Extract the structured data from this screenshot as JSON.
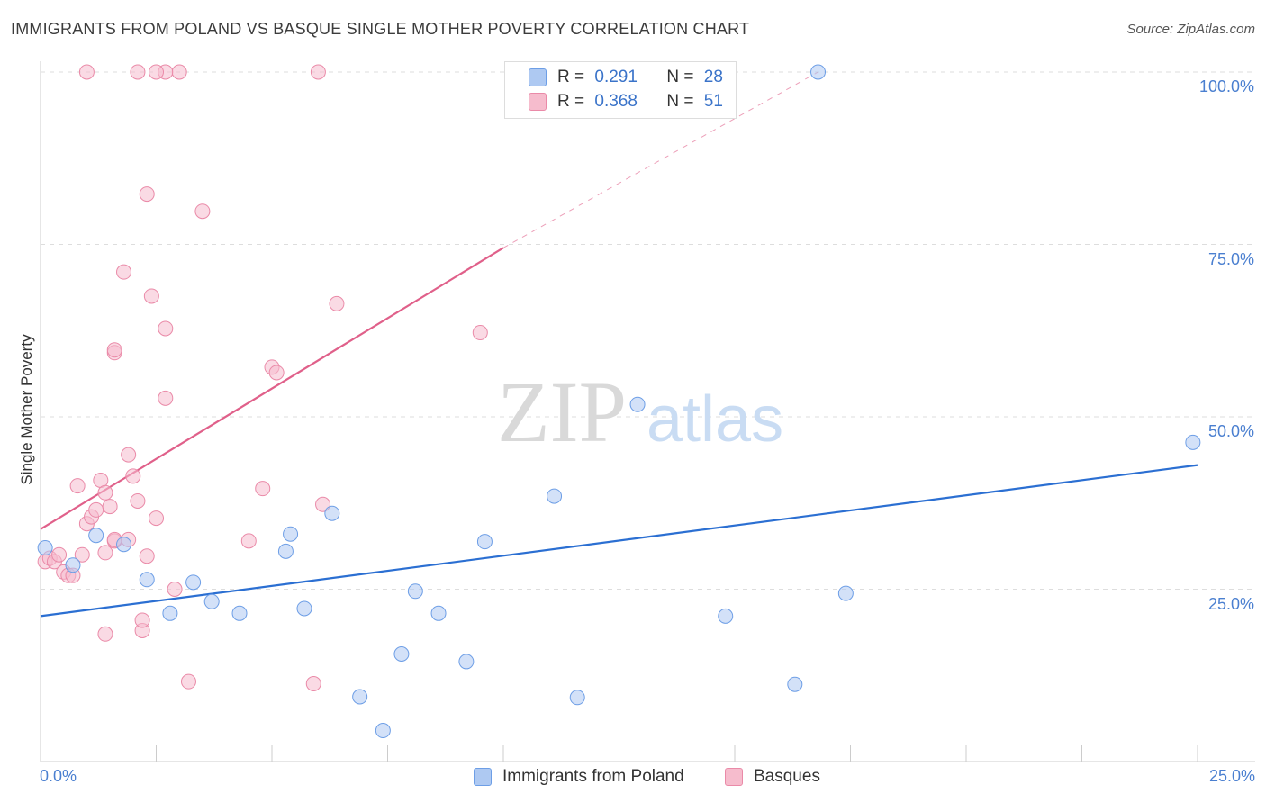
{
  "title": "IMMIGRANTS FROM POLAND VS BASQUE SINGLE MOTHER POVERTY CORRELATION CHART",
  "source": "Source: ZipAtlas.com",
  "watermark": {
    "zip": "ZIP",
    "atlas": "atlas"
  },
  "legend_top": [
    {
      "r_label": "R =",
      "r_value": "0.291",
      "n_label": "N =",
      "n_value": "28"
    },
    {
      "r_label": "R =",
      "r_value": "0.368",
      "n_label": "N =",
      "n_value": "51"
    }
  ],
  "colors": {
    "poland_fill": "#aec9f2",
    "poland_stroke": "#6d9ee6",
    "poland_line": "#2b6fd2",
    "basque_fill": "#f6bccd",
    "basque_stroke": "#ea8aa8",
    "basque_line": "#e0608a",
    "grid": "#dddddd",
    "axis_text": "#4a7fd0"
  },
  "chart_data": {
    "type": "scatter",
    "title": "IMMIGRANTS FROM POLAND VS BASQUE SINGLE MOTHER POVERTY CORRELATION CHART",
    "xlabel": "",
    "ylabel": "Single Mother Poverty",
    "xlim": [
      0,
      25
    ],
    "ylim": [
      0,
      100
    ],
    "x_tick_labels": [
      "0.0%",
      "25.0%"
    ],
    "y_tick_labels": [
      "25.0%",
      "50.0%",
      "75.0%",
      "100.0%"
    ],
    "y_ticks": [
      25,
      50,
      75,
      100
    ],
    "grid": true,
    "legend_position": "top-center",
    "series": [
      {
        "name": "Immigrants from Poland",
        "r": 0.291,
        "n": 28,
        "trend": {
          "x": [
            0,
            25
          ],
          "y": [
            21.1,
            43.0
          ]
        },
        "points": [
          [
            0.1,
            31
          ],
          [
            0.7,
            28.5
          ],
          [
            1.2,
            32.8
          ],
          [
            1.8,
            31.5
          ],
          [
            2.3,
            26.4
          ],
          [
            2.8,
            21.5
          ],
          [
            3.3,
            26
          ],
          [
            3.7,
            23.2
          ],
          [
            4.3,
            21.5
          ],
          [
            5.3,
            30.5
          ],
          [
            5.4,
            33
          ],
          [
            5.7,
            22.2
          ],
          [
            6.3,
            36
          ],
          [
            6.9,
            9.4
          ],
          [
            7.4,
            4.5
          ],
          [
            7.8,
            15.6
          ],
          [
            8.1,
            24.7
          ],
          [
            8.6,
            21.5
          ],
          [
            9.2,
            14.5
          ],
          [
            9.6,
            31.9
          ],
          [
            11.1,
            38.5
          ],
          [
            11.6,
            9.3
          ],
          [
            12.9,
            51.8
          ],
          [
            14.8,
            21.1
          ],
          [
            16.3,
            11.2
          ],
          [
            16.8,
            100
          ],
          [
            17.4,
            24.4
          ],
          [
            24.9,
            46.3
          ]
        ]
      },
      {
        "name": "Basques",
        "r": 0.368,
        "n": 51,
        "trend": {
          "x": [
            0,
            10
          ],
          "y": [
            33.7,
            74.5
          ]
        },
        "trend_dashed": {
          "x": [
            10,
            16.8
          ],
          "y": [
            74.5,
            100
          ]
        },
        "points": [
          [
            0.1,
            29
          ],
          [
            0.2,
            29.5
          ],
          [
            0.3,
            29
          ],
          [
            0.4,
            30
          ],
          [
            0.5,
            27.5
          ],
          [
            0.6,
            27
          ],
          [
            0.7,
            27
          ],
          [
            0.8,
            40
          ],
          [
            0.9,
            30
          ],
          [
            1.0,
            34.5
          ],
          [
            1.1,
            35.5
          ],
          [
            1.2,
            36.5
          ],
          [
            1.3,
            40.8
          ],
          [
            1.4,
            39
          ],
          [
            1.5,
            37
          ],
          [
            1.6,
            32
          ],
          [
            1.4,
            30.3
          ],
          [
            1.6,
            32.2
          ],
          [
            1.4,
            18.5
          ],
          [
            1.6,
            59.3
          ],
          [
            1.6,
            59.7
          ],
          [
            1.8,
            71
          ],
          [
            1.9,
            32.2
          ],
          [
            1.9,
            44.5
          ],
          [
            2.0,
            41.4
          ],
          [
            2.1,
            37.8
          ],
          [
            2.2,
            19
          ],
          [
            2.2,
            20.5
          ],
          [
            2.3,
            82.3
          ],
          [
            2.3,
            29.8
          ],
          [
            2.4,
            67.5
          ],
          [
            2.5,
            35.3
          ],
          [
            2.7,
            62.8
          ],
          [
            2.7,
            52.7
          ],
          [
            2.9,
            25
          ],
          [
            3.2,
            11.6
          ],
          [
            3.5,
            79.8
          ],
          [
            3.0,
            100
          ],
          [
            2.7,
            100
          ],
          [
            6.0,
            100
          ],
          [
            4.5,
            32
          ],
          [
            4.8,
            39.6
          ],
          [
            5.0,
            57.2
          ],
          [
            5.1,
            56.4
          ],
          [
            5.9,
            11.3
          ],
          [
            6.1,
            37.3
          ],
          [
            6.4,
            66.4
          ],
          [
            9.5,
            62.2
          ],
          [
            1.0,
            100
          ],
          [
            2.1,
            100
          ],
          [
            2.5,
            100
          ]
        ]
      }
    ]
  }
}
